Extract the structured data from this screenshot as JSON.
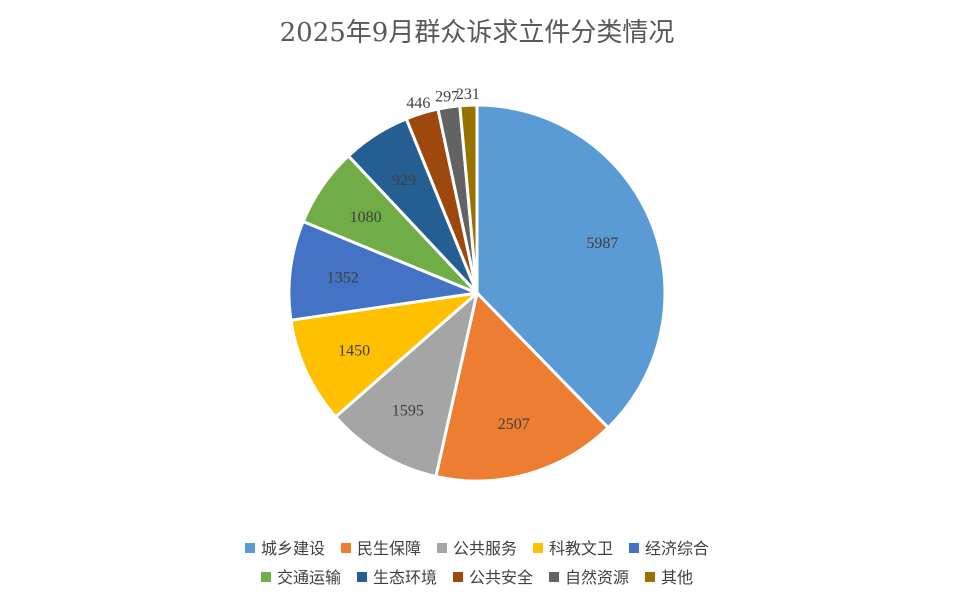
{
  "chart_data": {
    "type": "pie",
    "title": "2025年9月群众诉求立件分类情况",
    "categories": [
      "城乡建设",
      "民生保障",
      "公共服务",
      "科教文卫",
      "经济综合",
      "交通运输",
      "生态环境",
      "公共安全",
      "自然资源",
      "其他"
    ],
    "values": [
      5987,
      2507,
      1595,
      1450,
      1352,
      1080,
      929,
      446,
      297,
      231
    ],
    "colors": [
      "#5B9BD5",
      "#ED7D31",
      "#A5A5A5",
      "#FFC000",
      "#4472C4",
      "#70AD47",
      "#255E91",
      "#9E480E",
      "#636363",
      "#997300"
    ],
    "legend_position": "bottom",
    "legend_rows": [
      [
        0,
        1,
        2,
        3,
        4
      ],
      [
        5,
        6,
        7,
        8,
        9
      ]
    ],
    "start_angle": "12 o'clock",
    "direction": "clockwise"
  }
}
